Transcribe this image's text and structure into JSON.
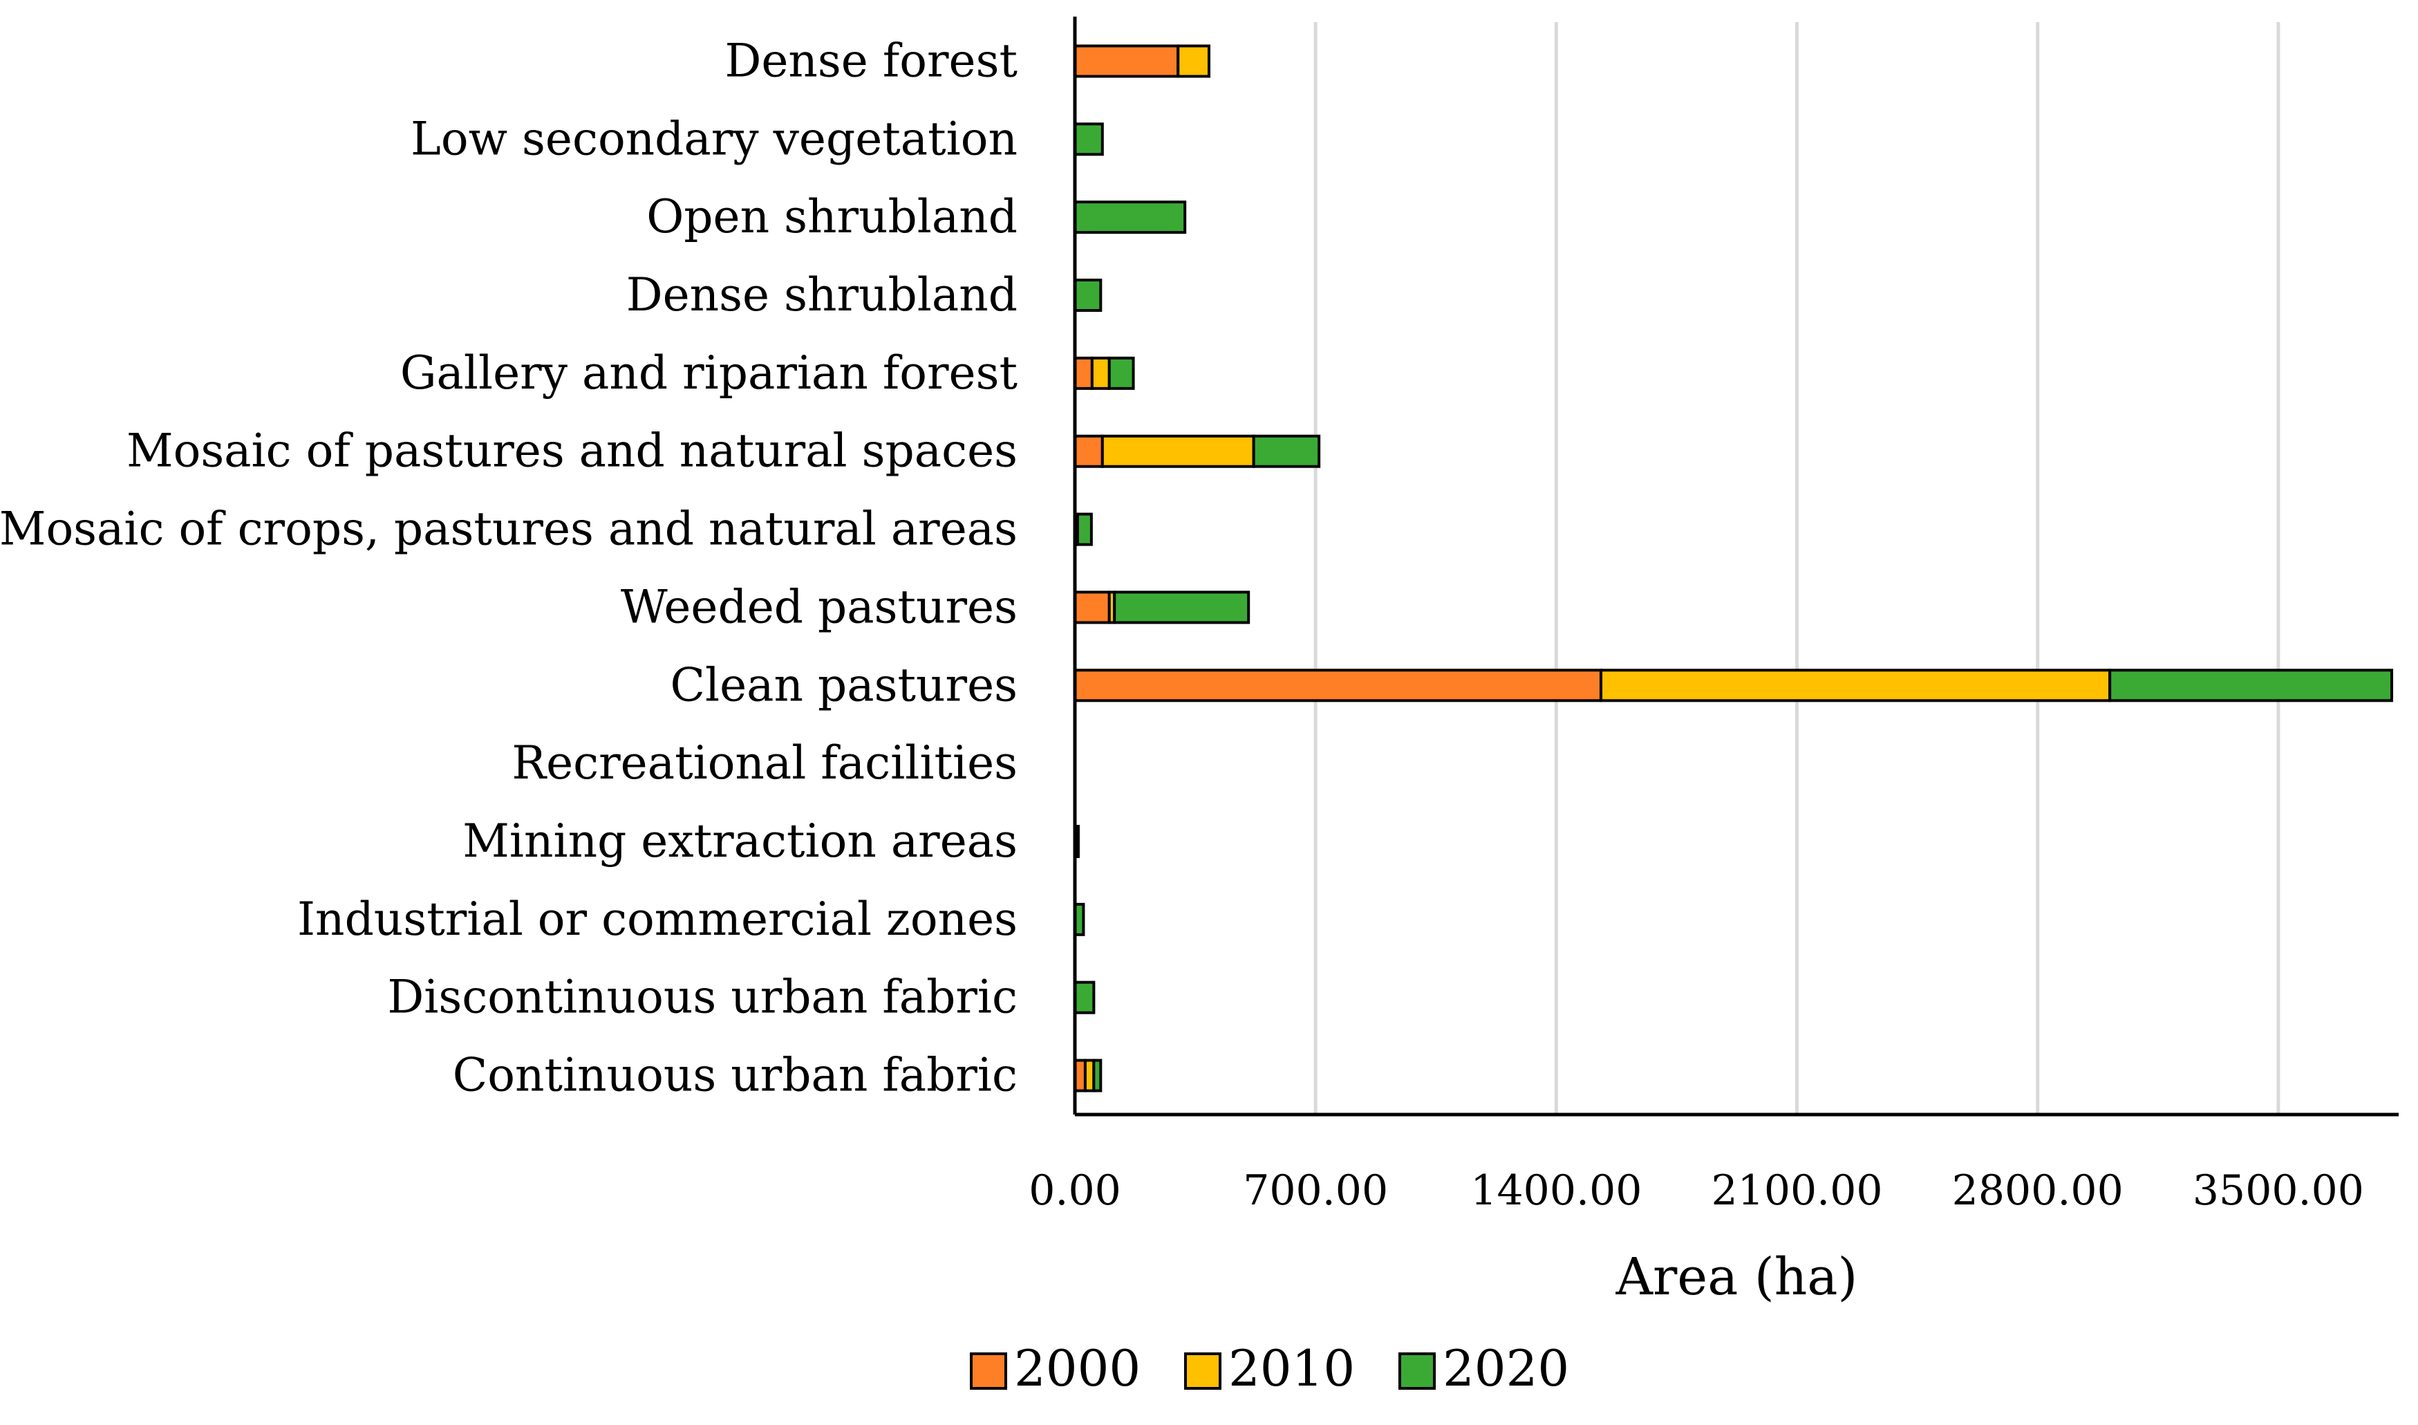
{
  "chart_data": {
    "type": "bar",
    "orientation": "horizontal",
    "stacked": true,
    "title": "",
    "xlabel": "Area (ha)",
    "ylabel": "",
    "xlim": [
      0,
      3850
    ],
    "xticks": [
      0,
      700,
      1400,
      2100,
      2800,
      3500
    ],
    "xtick_labels": [
      "0.00",
      "700.00",
      "1400.00",
      "2100.00",
      "2800.00",
      "3500.00"
    ],
    "grid": true,
    "legend_position": "bottom",
    "categories": [
      "Dense forest",
      "Low secondary vegetation",
      "Open shrubland",
      "Dense shrubland",
      "Gallery and riparian forest",
      "Mosaic of pastures and natural spaces",
      "Mosaic of crops, pastures and natural areas",
      "Weeded pastures",
      "Clean pastures",
      "Recreational facilities",
      "Mining extraction areas",
      "Industrial or commercial zones",
      "Discontinuous urban fabric",
      "Continuous urban fabric"
    ],
    "series": [
      {
        "name": "2000",
        "color": "#FF7F27",
        "values": [
          300,
          0,
          0,
          0,
          50,
          80,
          5,
          100,
          1530,
          0,
          0,
          0,
          0,
          30
        ]
      },
      {
        "name": "2010",
        "color": "#FFC000",
        "values": [
          90,
          0,
          0,
          0,
          50,
          440,
          3,
          15,
          1480,
          0,
          5,
          0,
          0,
          25
        ]
      },
      {
        "name": "2020",
        "color": "#3AAA35",
        "values": [
          0,
          80,
          320,
          75,
          70,
          190,
          40,
          390,
          820,
          0,
          5,
          25,
          55,
          20
        ]
      }
    ]
  }
}
